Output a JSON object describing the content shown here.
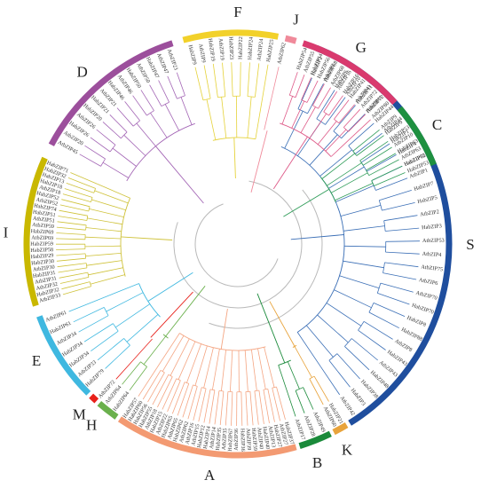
{
  "tree": {
    "groups": [
      {
        "id": "S",
        "label": "S",
        "color": "#1f4e9e",
        "branch_color": "#3b6fb6",
        "leaves": [
          "HabZIP2",
          "AtbZIP3",
          "HabZIP6",
          "AtbZIP10",
          "HabZIP11",
          "AtbZIP11",
          "HabZIP44",
          "AtbZIP44",
          "HabZIP1",
          "HabZIP4",
          "HabZIP75",
          "AtbZIP1",
          "HabZIP7",
          "HabZIP5",
          "AtbZIP2",
          "HabZIP3",
          "AtbZIP53",
          "AtbZIP4",
          "AtbZIP75",
          "AtbZIP6",
          "AtbZIP70",
          "HabZIP70",
          "HabZIP8",
          "HabZIP88",
          "AtbZIP8",
          "HabZIP43",
          "AtbZIP43",
          "HabZIP48",
          "HabZIP38",
          "HabZIP3",
          "AtbZIP42"
        ]
      },
      {
        "id": "K",
        "label": "K",
        "color": "#e8a33b",
        "branch_color": "#e8a33b",
        "leaves": [
          "HabZIP21",
          "AtbZIP60"
        ]
      },
      {
        "id": "B",
        "label": "B",
        "color": "#1a8a3a",
        "branch_color": "#1a8a3a",
        "leaves": [
          "AtbZIP49",
          "AtbZIP28",
          "AtbZIP17"
        ]
      },
      {
        "id": "A",
        "label": "A",
        "color": "#f39a72",
        "branch_color": "#f4a582",
        "leaves": [
          "HabZIP37",
          "AtbZIP27",
          "HabZIP27",
          "AtbZIP13",
          "HabZIP40",
          "AtbZIP40",
          "HabZIP39",
          "AtbZIP39",
          "HabZIP36",
          "AtbZIP36",
          "HabZIP67",
          "AtbZIP35",
          "HabZIP35",
          "AtbZIP14",
          "HabZIP14",
          "HabZIP12",
          "AtbZIP15",
          "AtbZIP16",
          "AtbZIP62",
          "HabZIP62",
          "AtbZIP65",
          "HabZIP65",
          "AtbZIP22",
          "HabZIP15",
          "AtbZIP18",
          "HabZIP55",
          "HabZIP56",
          "HabZIP60",
          "HabZIP57"
        ]
      },
      {
        "id": "H",
        "label": "H",
        "color": "#6ab04c",
        "branch_color": "#6ab04c",
        "leaves": [
          "HabZIP64",
          "AtbZIP64"
        ]
      },
      {
        "id": "M",
        "label": "M",
        "color": "#e8211b",
        "branch_color": "#e8211b",
        "leaves": [
          "AtbZIP72"
        ]
      },
      {
        "id": "E",
        "label": "E",
        "color": "#3fb8e0",
        "branch_color": "#3fb8e0",
        "leaves": [
          "HabZIP79",
          "AtbZIP33",
          "HabZIP34",
          "HabZIP34",
          "AtbZIP34",
          "HabZIP61",
          "AtbZIP61"
        ]
      },
      {
        "id": "I",
        "label": "I",
        "color": "#c9b800",
        "branch_color": "#cfc23a",
        "leaves": [
          "AtbZIP33",
          "HabZIP32",
          "AtbZIP32",
          "AtbZIP31",
          "HabZIP31",
          "AtbZIP30",
          "HabZIP30",
          "HabZIP29",
          "HabZIP58",
          "HabZIP59",
          "AtbZIP69",
          "HabZIP69",
          "AtbZIP59",
          "AtbZIP51",
          "HabZIP51",
          "HabZIP74",
          "AtbZIP52",
          "HabZIP52",
          "AtbZIP18",
          "HabZIP18",
          "HabZIP13",
          "HabZIP32",
          "HabZIP71"
        ]
      },
      {
        "id": "D",
        "label": "D",
        "color": "#9c4f9c",
        "branch_color": "#a365b5",
        "leaves": [
          "AtbZIP45",
          "AtbZIP20",
          "HabZIP26",
          "AtbZIP26",
          "HabZIP20",
          "HabZIP21",
          "AtbZIP21",
          "HabZIP46",
          "AtbZIP46",
          "HabZIP50",
          "AtbZIP50",
          "HabZIP47",
          "AtbZIP47",
          "AtbZIP23"
        ]
      },
      {
        "id": "F",
        "label": "F",
        "color": "#f2d12a",
        "branch_color": "#e5d23a",
        "leaves": [
          "HabZIP9",
          "AtbZIP9",
          "HabZIP19",
          "AtbZIP19",
          "HabZIP23",
          "HabZIP22",
          "HabZIP24",
          "AtbZIP24",
          "HabZIP25"
        ]
      },
      {
        "id": "J",
        "label": "J",
        "color": "#f08a9a",
        "branch_color": "#f08a9a",
        "leaves": [
          "AtbZIP62"
        ]
      },
      {
        "id": "G",
        "label": "G",
        "color": "#d93a6e",
        "branch_color": "#de5a88",
        "leaves": [
          "HabZIP54",
          "AtbZIP55",
          "HabZIP54",
          "HabZIP56",
          "HabZIP68",
          "AtbZIP68",
          "AtbZIP16",
          "HabZIP16",
          "HabZIP41",
          "AtbZIP41",
          "AtbZIP72",
          "HabZIP72",
          "AtbZIP80"
        ]
      },
      {
        "id": "C",
        "label": "C",
        "color": "#1e9040",
        "branch_color": "#2e9c58",
        "leaves": [
          "AtbZIP9",
          "HabZIP9",
          "HabZIP53",
          "AtbZIP10",
          "HabZIP63",
          "AtbZIP63",
          "HabZIP62",
          "HabZIP53"
        ]
      }
    ]
  }
}
